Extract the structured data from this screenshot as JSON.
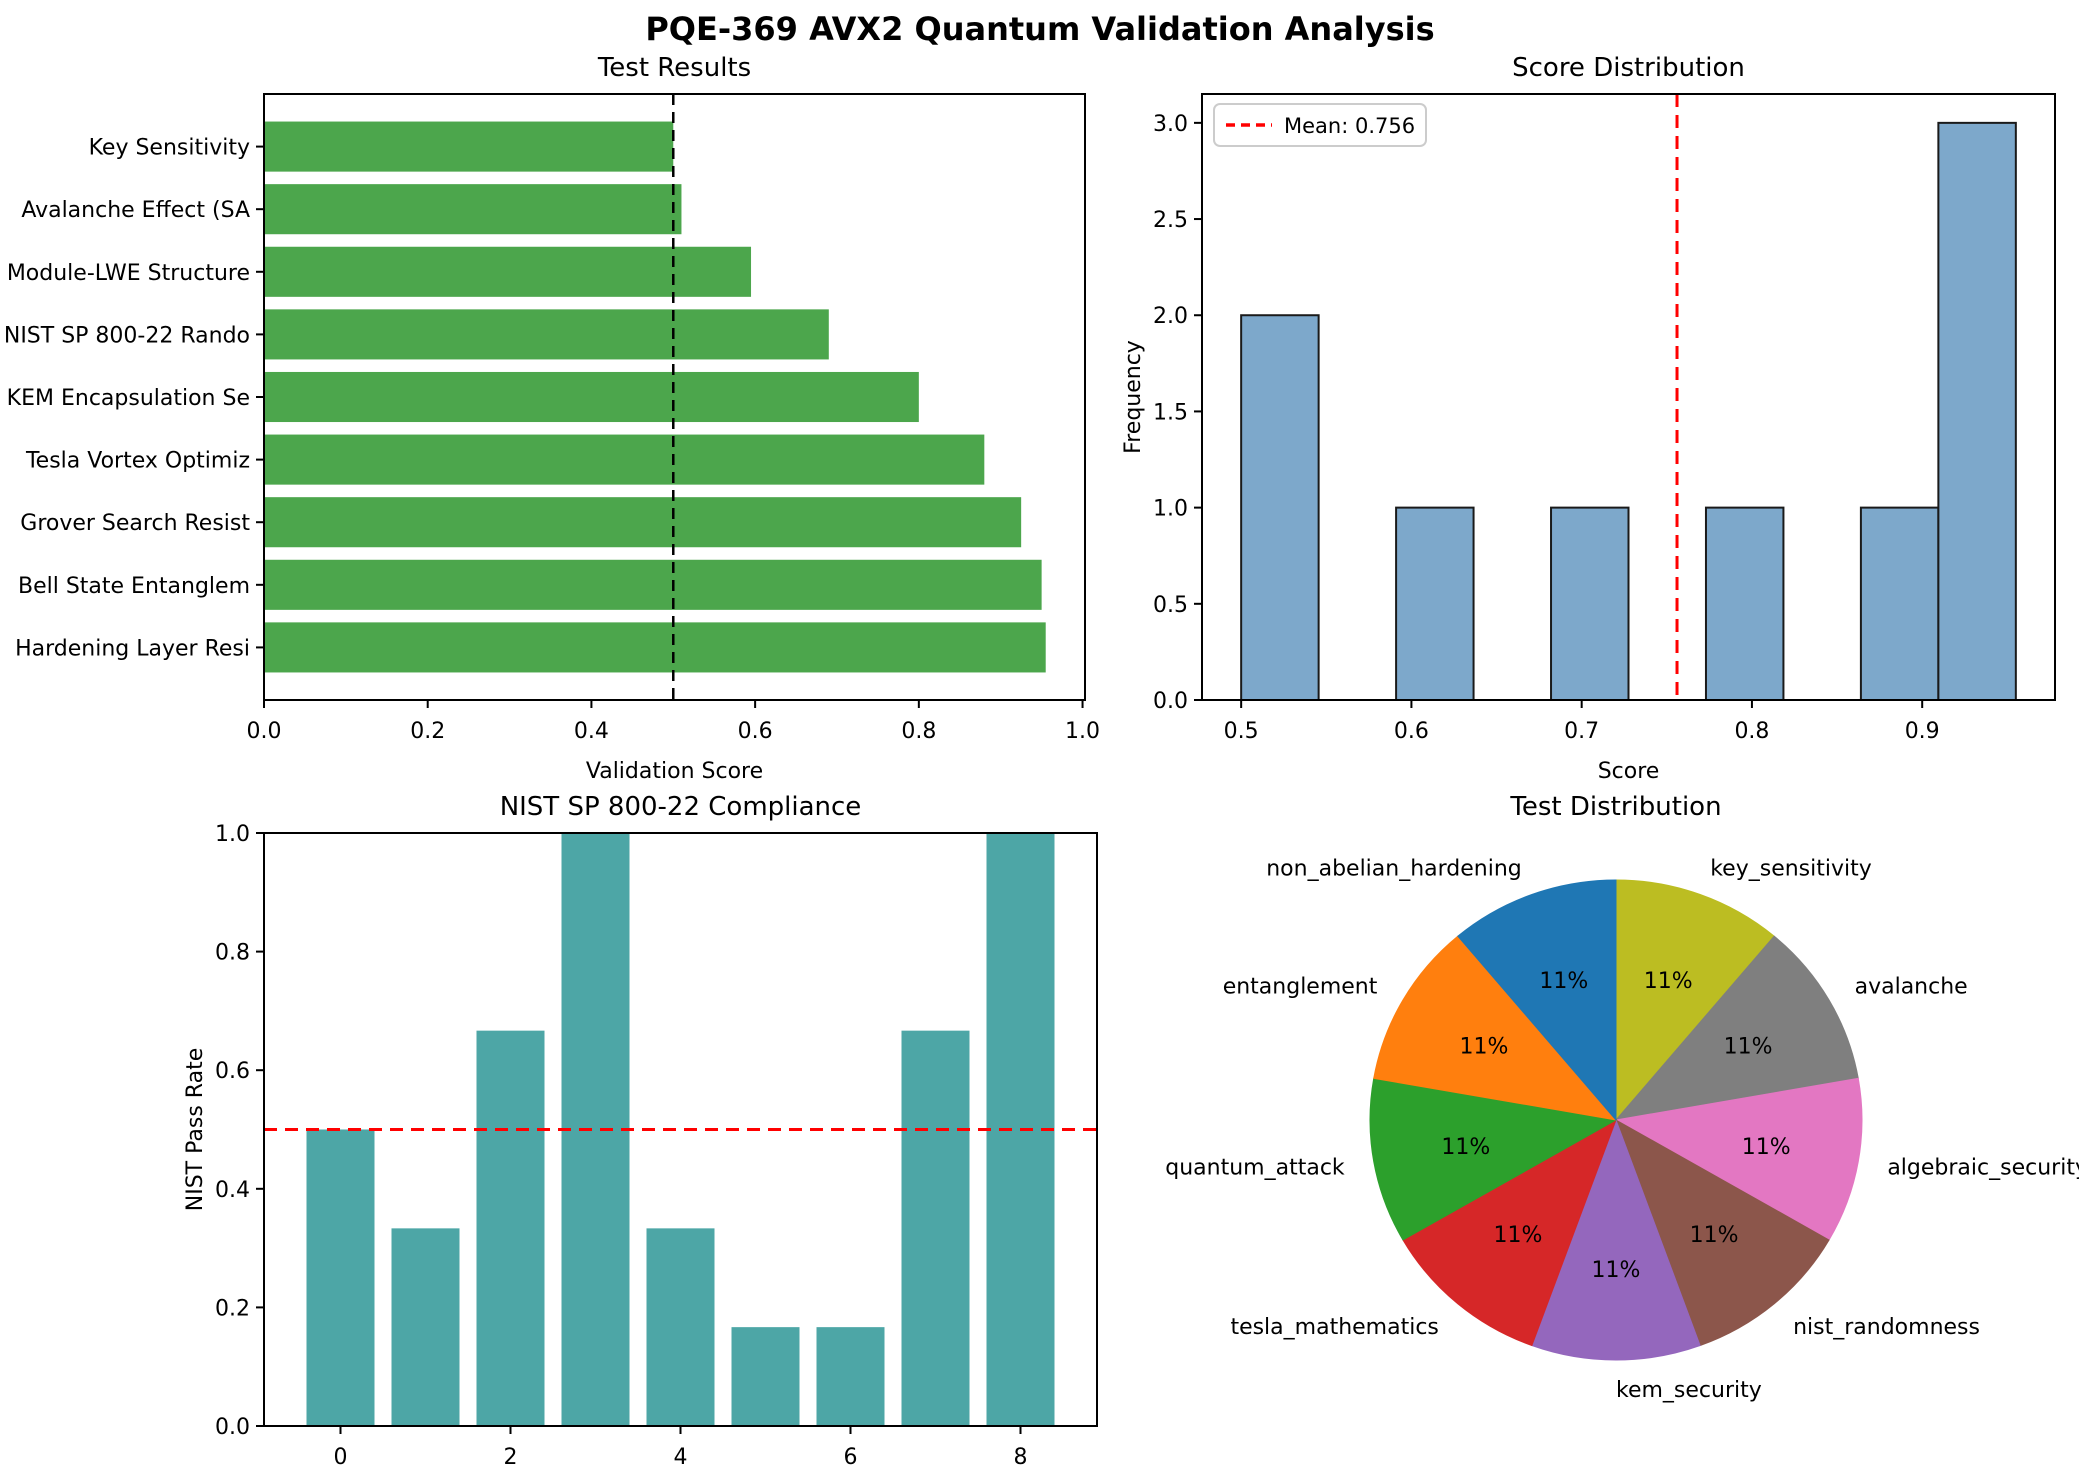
{
  "figure_title": "PQE-369 AVX2 Quantum Validation Analysis",
  "chart_data": [
    {
      "id": "test_results",
      "type": "bar",
      "orientation": "horizontal",
      "title": "Test Results",
      "xlabel": "Validation Score",
      "categories": [
        "Key Sensitivity",
        "Avalanche Effect (SA",
        "Module-LWE Structure",
        "NIST SP 800-22 Rando",
        "KEM Encapsulation Se",
        "Tesla Vortex Optimiz",
        "Grover Search Resist",
        "Bell State Entanglem",
        "Hardening Layer Resi"
      ],
      "values": [
        0.5,
        0.51,
        0.595,
        0.69,
        0.8,
        0.88,
        0.925,
        0.95,
        0.955
      ],
      "xtick_labels": [
        "0.0",
        "0.2",
        "0.4",
        "0.6",
        "0.8",
        "1.0"
      ],
      "xtick_values": [
        0,
        0.2,
        0.4,
        0.6,
        0.8,
        1.0
      ],
      "xlim": [
        0,
        1.003
      ],
      "threshold_line": {
        "value": 0.5,
        "color": "#000000",
        "style": "dashed"
      },
      "bar_color": "#4CA64C",
      "grid": false
    },
    {
      "id": "score_distribution",
      "type": "histogram",
      "title": "Score Distribution",
      "xlabel": "Score",
      "ylabel": "Frequency",
      "bin_start": 0.5,
      "bin_end": 0.955,
      "bin_count": 10,
      "counts": [
        2,
        0,
        1,
        0,
        1,
        0,
        1,
        0,
        1,
        3
      ],
      "xtick_labels": [
        "0.5",
        "0.6",
        "0.7",
        "0.8",
        "0.9"
      ],
      "xtick_values": [
        0.5,
        0.6,
        0.7,
        0.8,
        0.9
      ],
      "ytick_labels": [
        "0.0",
        "0.5",
        "1.0",
        "1.5",
        "2.0",
        "2.5",
        "3.0"
      ],
      "ytick_values": [
        0,
        0.5,
        1,
        1.5,
        2,
        2.5,
        3
      ],
      "xlim": [
        0.477,
        0.978
      ],
      "ylim": [
        0,
        3.15
      ],
      "mean_line": {
        "value": 0.756,
        "color": "#ff0000",
        "style": "dashed"
      },
      "legend": {
        "label": "Mean: 0.756",
        "position": "upper left"
      },
      "bar_color": "#7DA8CB",
      "bar_edge_color": "#1a1a1a",
      "grid": false
    },
    {
      "id": "nist_compliance",
      "type": "bar",
      "orientation": "vertical",
      "title": "NIST SP 800-22 Compliance",
      "ylabel": "NIST Pass Rate",
      "x": [
        0,
        1,
        2,
        3,
        4,
        5,
        6,
        7,
        8
      ],
      "values": [
        0.5,
        0.3333,
        0.6667,
        1.0,
        0.3333,
        0.1667,
        0.1667,
        0.6667,
        1.0
      ],
      "xtick_labels": [
        "0",
        "2",
        "4",
        "6",
        "8"
      ],
      "xtick_values": [
        0,
        2,
        4,
        6,
        8
      ],
      "ytick_labels": [
        "0.0",
        "0.2",
        "0.4",
        "0.6",
        "0.8",
        "1.0"
      ],
      "ytick_values": [
        0,
        0.2,
        0.4,
        0.6,
        0.8,
        1.0
      ],
      "xlim": [
        -0.9,
        8.9
      ],
      "ylim": [
        0,
        1.0
      ],
      "threshold_line": {
        "value": 0.5,
        "color": "#ff0000",
        "style": "dashed"
      },
      "bar_color": "#4DA6A6",
      "grid": false
    },
    {
      "id": "test_distribution",
      "type": "pie",
      "title": "Test Distribution",
      "start_angle": 90,
      "direction": "clockwise",
      "slices": [
        {
          "label": "key_sensitivity",
          "pct_label": "11%",
          "value": 11.1,
          "color": "#bcbd22"
        },
        {
          "label": "avalanche",
          "pct_label": "11%",
          "value": 11.1,
          "color": "#7f7f7f"
        },
        {
          "label": "algebraic_security",
          "pct_label": "11%",
          "value": 11.1,
          "color": "#e377c2"
        },
        {
          "label": "nist_randomness",
          "pct_label": "11%",
          "value": 11.1,
          "color": "#8c564b"
        },
        {
          "label": "kem_security",
          "pct_label": "11%",
          "value": 11.1,
          "color": "#9467bd"
        },
        {
          "label": "tesla_mathematics",
          "pct_label": "11%",
          "value": 11.1,
          "color": "#d62728"
        },
        {
          "label": "quantum_attack",
          "pct_label": "11%",
          "value": 11.1,
          "color": "#2ca02c"
        },
        {
          "label": "entanglement",
          "pct_label": "11%",
          "value": 11.1,
          "color": "#ff7f0e"
        },
        {
          "label": "non_abelian_hardening",
          "pct_label": "11%",
          "value": 11.1,
          "color": "#1f77b4"
        }
      ]
    }
  ]
}
